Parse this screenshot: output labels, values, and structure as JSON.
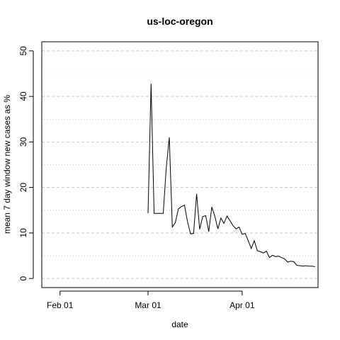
{
  "chart_data": {
    "type": "line",
    "title": "us-loc-oregon",
    "xlabel": "date",
    "ylabel": "mean  7  day window new cases as %",
    "x_ticks": [
      {
        "label": "Feb 01",
        "date": "2020-02-01"
      },
      {
        "label": "Mar 01",
        "date": "2020-03-01"
      },
      {
        "label": "Apr 01",
        "date": "2020-04-01"
      }
    ],
    "y_ticks": [
      0,
      10,
      20,
      30,
      40,
      50
    ],
    "xlim": [
      "2020-01-26",
      "2020-04-26"
    ],
    "ylim": [
      -2,
      52
    ],
    "grid": "horizontal dashed at major ticks, dotted at half ticks",
    "series": [
      {
        "color": "#000000",
        "points": [
          [
            "2020-03-01",
            14.3
          ],
          [
            "2020-03-02",
            42.8
          ],
          [
            "2020-03-03",
            14.3
          ],
          [
            "2020-03-04",
            14.3
          ],
          [
            "2020-03-05",
            14.3
          ],
          [
            "2020-03-06",
            14.3
          ],
          [
            "2020-03-07",
            24.3
          ],
          [
            "2020-03-08",
            31.0
          ],
          [
            "2020-03-09",
            11.3
          ],
          [
            "2020-03-10",
            12.3
          ],
          [
            "2020-03-11",
            15.3
          ],
          [
            "2020-03-12",
            15.8
          ],
          [
            "2020-03-13",
            16.1
          ],
          [
            "2020-03-14",
            12.5
          ],
          [
            "2020-03-15",
            9.8
          ],
          [
            "2020-03-16",
            9.9
          ],
          [
            "2020-03-17",
            18.6
          ],
          [
            "2020-03-18",
            10.8
          ],
          [
            "2020-03-19",
            13.6
          ],
          [
            "2020-03-20",
            13.8
          ],
          [
            "2020-03-21",
            10.3
          ],
          [
            "2020-03-22",
            15.7
          ],
          [
            "2020-03-23",
            13.7
          ],
          [
            "2020-03-24",
            10.9
          ],
          [
            "2020-03-25",
            13.3
          ],
          [
            "2020-03-26",
            12.1
          ],
          [
            "2020-03-27",
            13.7
          ],
          [
            "2020-03-28",
            12.7
          ],
          [
            "2020-03-29",
            11.6
          ],
          [
            "2020-03-30",
            10.9
          ],
          [
            "2020-03-31",
            11.3
          ],
          [
            "2020-04-01",
            9.7
          ],
          [
            "2020-04-02",
            9.9
          ],
          [
            "2020-04-03",
            8.3
          ],
          [
            "2020-04-04",
            6.6
          ],
          [
            "2020-04-05",
            8.3
          ],
          [
            "2020-04-06",
            6.1
          ],
          [
            "2020-04-07",
            5.9
          ],
          [
            "2020-04-08",
            5.6
          ],
          [
            "2020-04-09",
            6.0
          ],
          [
            "2020-04-10",
            4.6
          ],
          [
            "2020-04-11",
            5.1
          ],
          [
            "2020-04-12",
            4.8
          ],
          [
            "2020-04-13",
            4.9
          ],
          [
            "2020-04-14",
            4.6
          ],
          [
            "2020-04-15",
            4.3
          ],
          [
            "2020-04-16",
            3.6
          ],
          [
            "2020-04-17",
            3.8
          ],
          [
            "2020-04-18",
            3.7
          ],
          [
            "2020-04-19",
            2.9
          ],
          [
            "2020-04-20",
            2.8
          ],
          [
            "2020-04-21",
            2.7
          ],
          [
            "2020-04-22",
            2.8
          ],
          [
            "2020-04-23",
            2.7
          ],
          [
            "2020-04-24",
            2.7
          ],
          [
            "2020-04-25",
            2.6
          ]
        ]
      }
    ]
  }
}
